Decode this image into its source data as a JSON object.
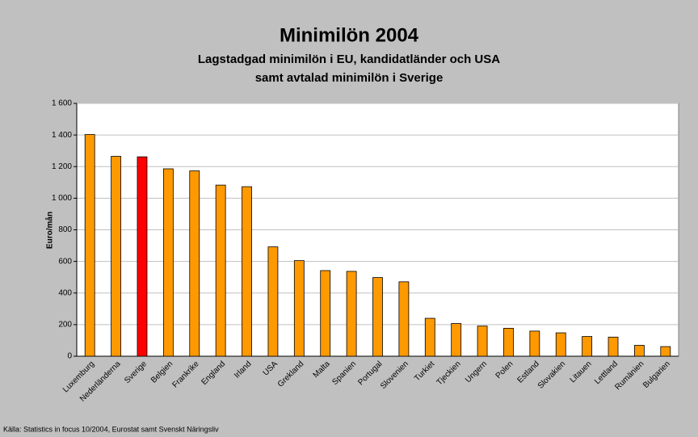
{
  "chart_data": {
    "type": "bar",
    "title": "Minimilön 2004",
    "subtitle": [
      "Lagstadgad minimilön i EU, kandidatländer och USA",
      "samt avtalad minimilön i Sverige"
    ],
    "y_label": "Euro/mån",
    "source": "Källa: Statistics in focus 10/2004, Eurostat samt Svenskt Näringsliv",
    "categories": [
      "Luxemburg",
      "Nederländerna",
      "Sverige",
      "Belgien",
      "Frankrike",
      "England",
      "Irland",
      "USA",
      "Grekland",
      "Malta",
      "Spanien",
      "Portugal",
      "Slovenien",
      "Turkiet",
      "Tjeckien",
      "Ungern",
      "Polen",
      "Estland",
      "Slovakien",
      "Litauen",
      "Lettland",
      "Rumänien",
      "Bulgarien"
    ],
    "values": [
      1403,
      1265,
      1262,
      1186,
      1173,
      1083,
      1073,
      692,
      605,
      542,
      537,
      498,
      471,
      240,
      207,
      191,
      177,
      159,
      148,
      125,
      121,
      69,
      61
    ],
    "colors": [
      "#ff9900",
      "#ff9900",
      "#ff0000",
      "#ff9900",
      "#ff9900",
      "#ff9900",
      "#ff9900",
      "#ff9900",
      "#ff9900",
      "#ff9900",
      "#ff9900",
      "#ff9900",
      "#ff9900",
      "#ff9900",
      "#ff9900",
      "#ff9900",
      "#ff9900",
      "#ff9900",
      "#ff9900",
      "#ff9900",
      "#ff9900",
      "#ff9900",
      "#ff9900"
    ],
    "ylim": [
      0,
      1600
    ],
    "yticks": [
      0,
      200,
      400,
      600,
      800,
      {
        "value": 1000,
        "label": "1 000"
      },
      {
        "value": 1200,
        "label": "1 200"
      },
      {
        "value": 1400,
        "label": "1 400"
      },
      {
        "value": 1600,
        "label": "1 600"
      }
    ],
    "grid": true
  }
}
